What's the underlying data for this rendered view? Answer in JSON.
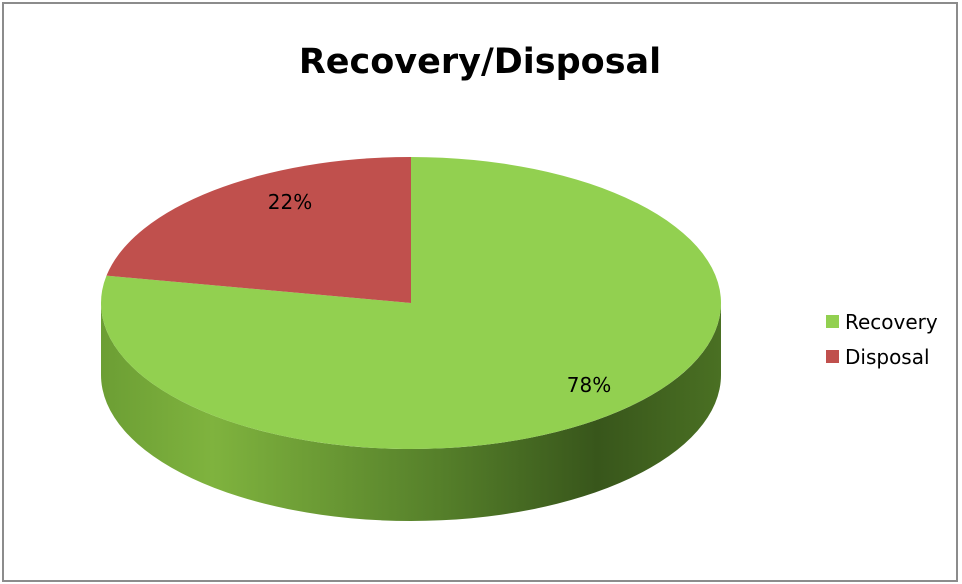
{
  "chart_data": {
    "type": "pie",
    "title": "Recovery/Disposal",
    "categories": [
      "Recovery",
      "Disposal"
    ],
    "values": [
      78,
      22
    ],
    "data_labels": [
      "78%",
      "22%"
    ],
    "colors": [
      "#92d050",
      "#c0504d"
    ],
    "three_d": true,
    "legend_position": "right"
  }
}
